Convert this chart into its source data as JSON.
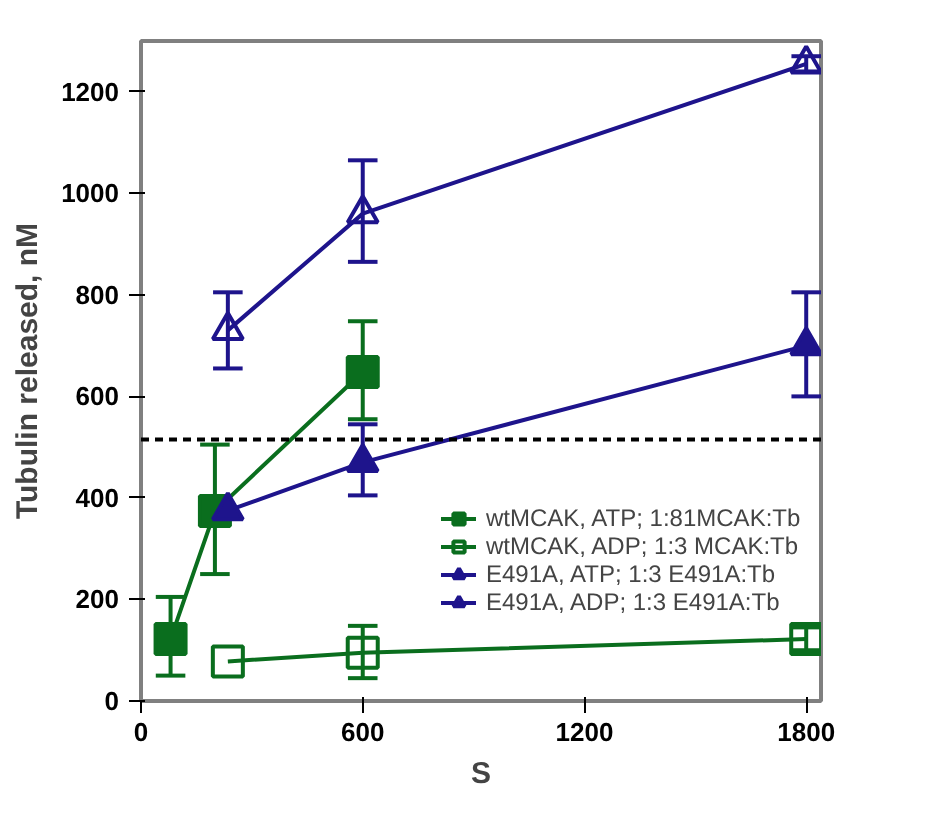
{
  "chart_data": {
    "type": "line",
    "xlabel": "S",
    "ylabel": "Tubulin released, nM",
    "xlim": [
      0,
      1840
    ],
    "xticks": [
      0,
      600,
      1200,
      1800
    ],
    "ylim": [
      0,
      1300
    ],
    "yticks": [
      0,
      200,
      400,
      600,
      800,
      1000,
      1200
    ],
    "grid": false,
    "legend": "right",
    "line_style": "solid",
    "ref_lines": [
      {
        "axis": "y",
        "value": 515,
        "color": "#000000",
        "line_style": "dashed"
      }
    ],
    "series": [
      {
        "name": "wtMCAK, ATP; 1:81MCAK:Tb",
        "color": "#0a6e1e",
        "marker": "square",
        "x": [
          80,
          200,
          600
        ],
        "values": [
          122,
          374,
          648
        ],
        "errors": [
          [
            50,
            205
          ],
          [
            250,
            505
          ],
          [
            555,
            748
          ]
        ]
      },
      {
        "name": "wtMCAK, ADP; 1:3 MCAK:Tb",
        "color": "#0a6e1e",
        "marker": "square",
        "x": [
          235,
          600,
          1800
        ],
        "values": [
          78,
          95,
          122
        ],
        "errors": [
          null,
          [
            45,
            148
          ],
          [
            100,
            145
          ]
        ]
      },
      {
        "name": "E491A, ATP; 1:3 E491A:Tb",
        "color": "#1e148c",
        "marker": "triangle",
        "x": [
          235,
          600,
          1800
        ],
        "values": [
          375,
          470,
          700
        ],
        "errors": [
          null,
          [
            405,
            545
          ],
          [
            600,
            805
          ]
        ]
      },
      {
        "name": "E491A, ADP; 1:3 E491A:Tb",
        "color": "#1e148c",
        "marker": "triangle",
        "x": [
          235,
          600,
          1800
        ],
        "values": [
          730,
          960,
          1255
        ],
        "errors": [
          [
            655,
            805
          ],
          [
            865,
            1065
          ],
          [
            1240,
            1270
          ]
        ]
      }
    ]
  }
}
